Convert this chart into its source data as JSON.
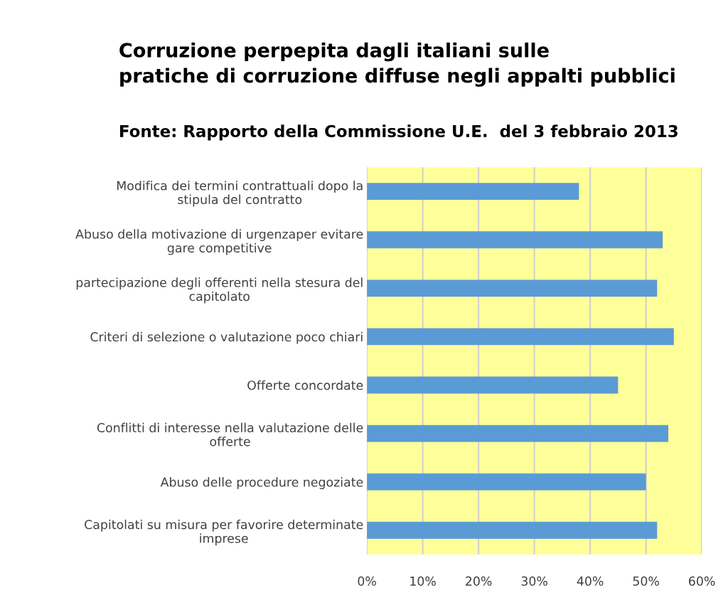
{
  "chart_data": {
    "type": "bar",
    "orientation": "horizontal",
    "title": "Corruzione perpepita dagli italiani sulle\npratiche di corruzione diffuse negli appalti pubblici",
    "subtitle": "Fonte: Rapporto della Commissione U.E.  del 3 febbraio 2013",
    "categories": [
      "Modifica dei termini contrattuali dopo la\nstipula del contratto",
      "Abuso della motivazione di urgenzaper evitare\ngare competitive",
      "partecipazione degli offerenti nella stesura del\ncapitolato",
      "Criteri di selezione o valutazione poco chiari",
      "Offerte concordate",
      "Conflitti di interesse nella valutazione delle\nofferte",
      "Abuso delle procedure negoziate",
      "Capitolati su misura per favorire determinate\nimprese"
    ],
    "values": [
      38,
      53,
      52,
      55,
      45,
      54,
      50,
      52
    ],
    "color": "#5b9bd5",
    "xlim": [
      0,
      60
    ],
    "xticks": [
      {
        "value": 0,
        "label": "0%"
      },
      {
        "value": 10,
        "label": "10%"
      },
      {
        "value": 20,
        "label": "20%"
      },
      {
        "value": 30,
        "label": "30%"
      },
      {
        "value": 40,
        "label": "40%"
      },
      {
        "value": 50,
        "label": "50%"
      },
      {
        "value": 60,
        "label": "60%"
      }
    ],
    "grid": "x"
  }
}
